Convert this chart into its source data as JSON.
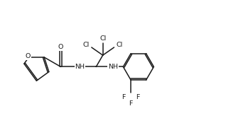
{
  "background_color": "#ffffff",
  "figsize": [
    3.18,
    1.98
  ],
  "dpi": 100,
  "line_color": "#1a1a1a",
  "line_width": 1.1,
  "font_size": 6.8,
  "font_family": "DejaVu Sans",
  "xlim": [
    0,
    10
  ],
  "ylim": [
    0,
    6.2
  ]
}
